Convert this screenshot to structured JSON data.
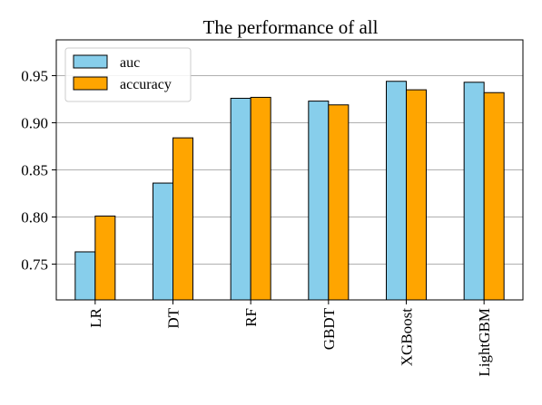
{
  "chart_data": {
    "type": "bar",
    "title": "The performance of all",
    "xlabel": "",
    "ylabel": "",
    "categories": [
      "LR",
      "DT",
      "RF",
      "GBDT",
      "XGBoost",
      "LightGBM"
    ],
    "series": [
      {
        "name": "auc",
        "color": "#87ceeb",
        "values": [
          0.763,
          0.836,
          0.926,
          0.923,
          0.944,
          0.943
        ]
      },
      {
        "name": "accuracy",
        "color": "#ffa500",
        "values": [
          0.801,
          0.884,
          0.927,
          0.919,
          0.935,
          0.932
        ]
      }
    ],
    "ylim": [
      0.712,
      0.988
    ],
    "yticks": [
      0.75,
      0.8,
      0.85,
      0.9,
      0.95
    ],
    "ytick_labels": [
      "0.75",
      "0.80",
      "0.85",
      "0.90",
      "0.95"
    ],
    "grid": "y",
    "legend_position": "top-left",
    "xtick_rotation": "vertical"
  }
}
